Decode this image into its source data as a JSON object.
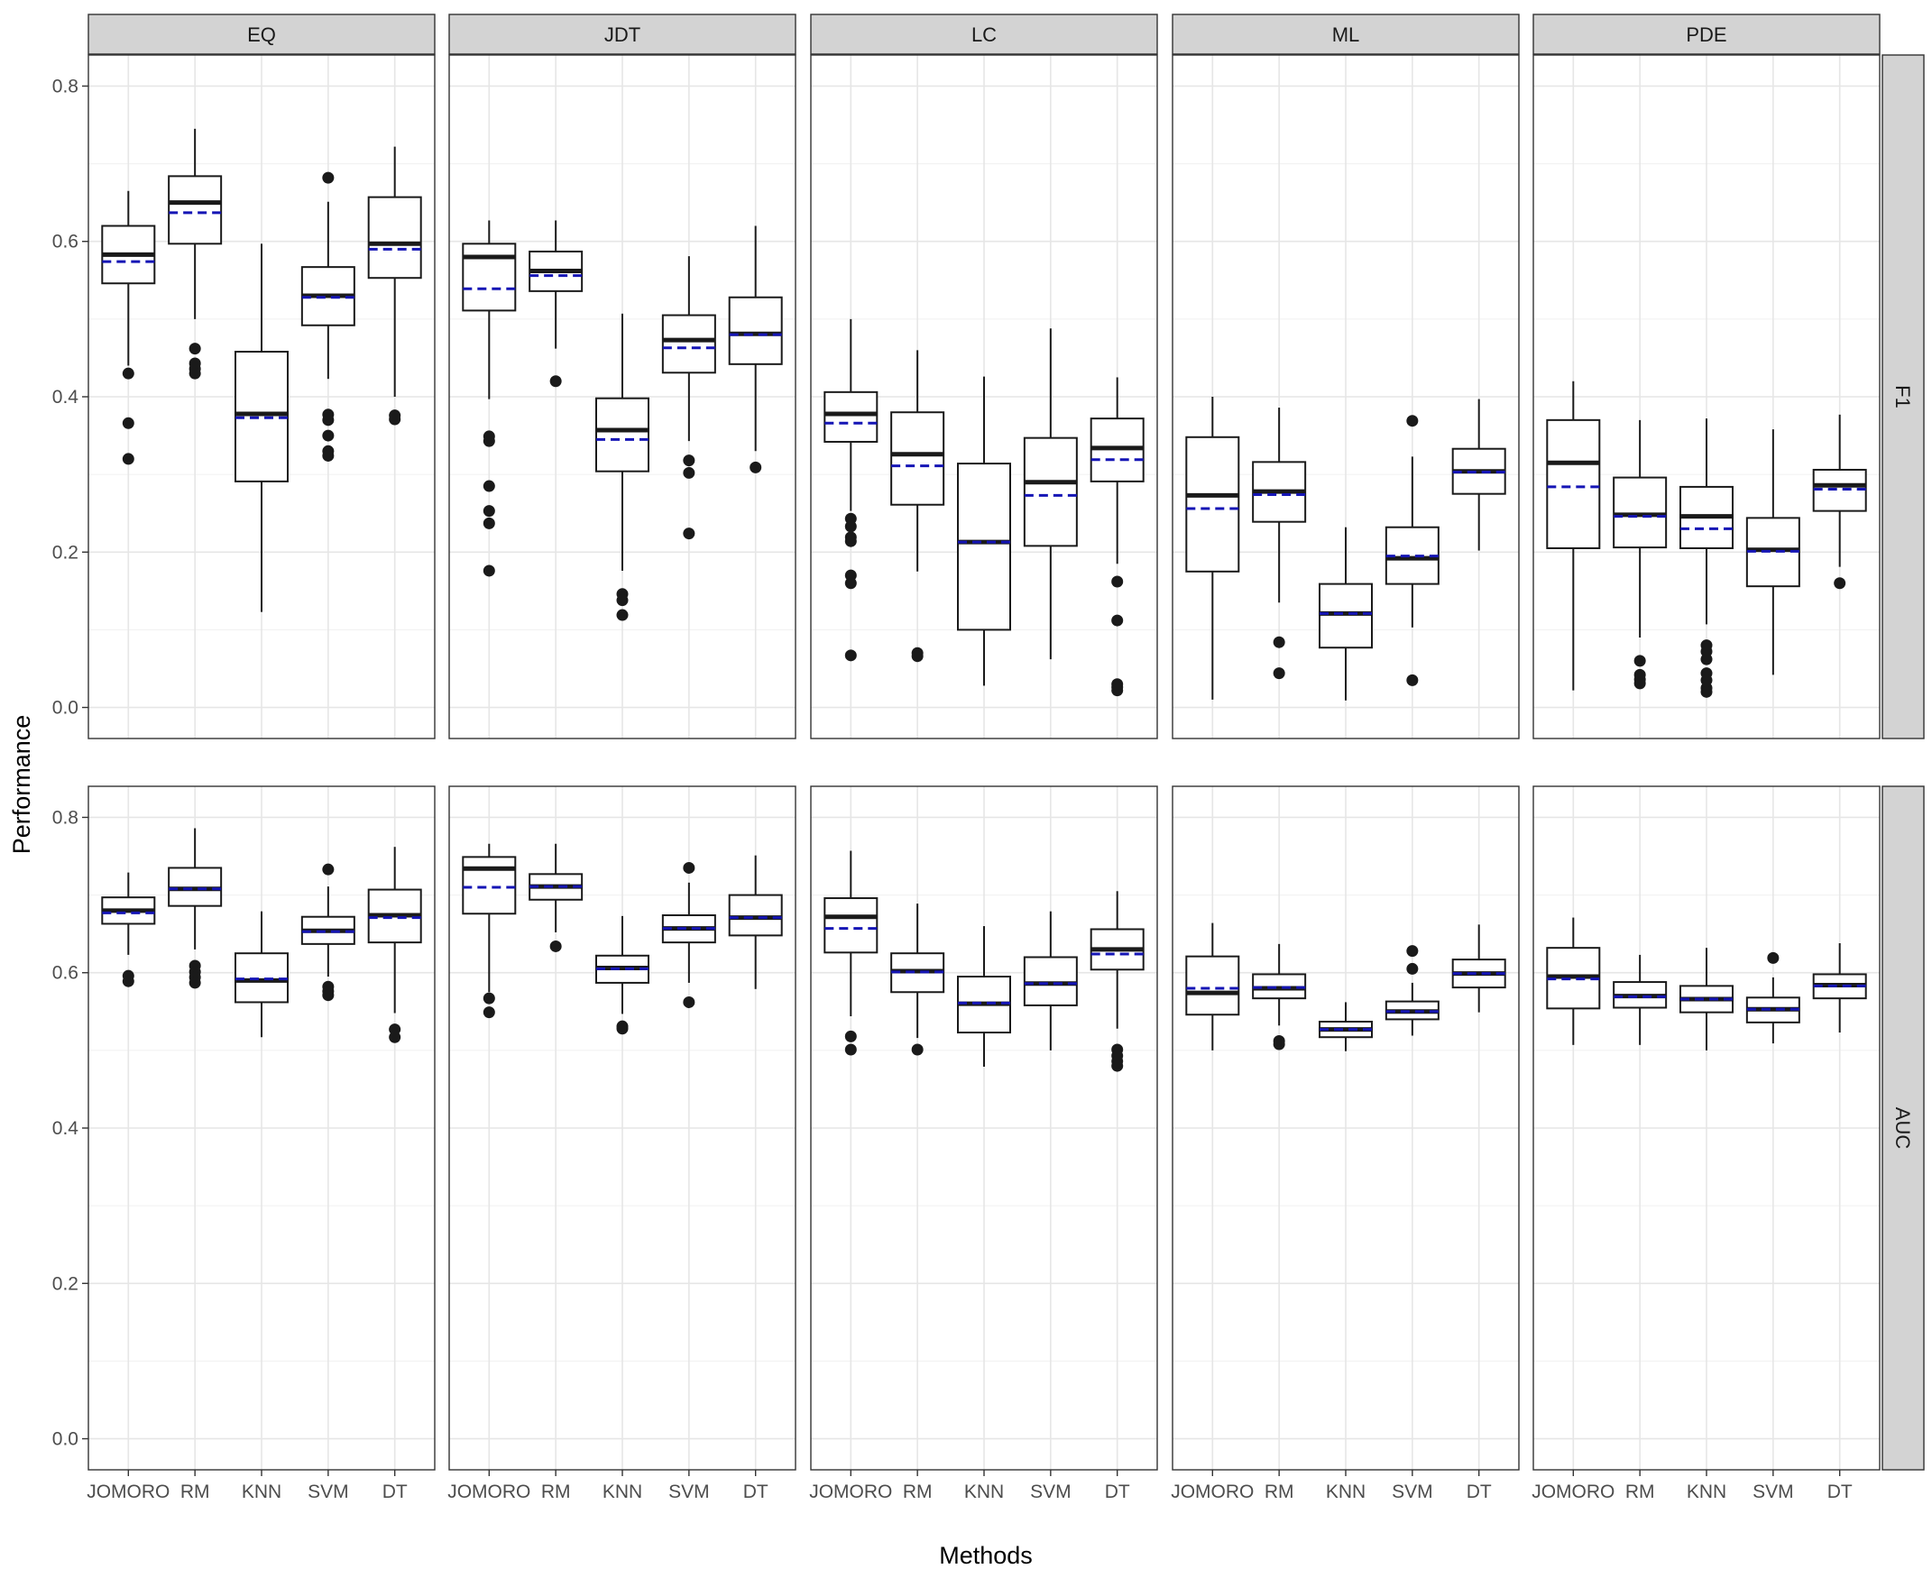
{
  "chart_data": {
    "type": "boxplot",
    "xlabel": "Methods",
    "ylabel": "Performance",
    "ylim": [
      0,
      0.8
    ],
    "yticks": [
      0.0,
      0.2,
      0.4,
      0.6,
      0.8
    ],
    "ytick_labels": [
      "0.0",
      "0.2",
      "0.4",
      "0.6",
      "0.8"
    ],
    "methods": [
      "JOMORO",
      "RM",
      "KNN",
      "SVM",
      "DT"
    ],
    "columns": [
      "EQ",
      "JDT",
      "LC",
      "ML",
      "PDE"
    ],
    "rows": [
      "F1",
      "AUC"
    ],
    "legend_note": "solid line = median, dashed line = mean",
    "colors": {
      "mean_line": "#1515b5",
      "strip": "#d3d3d3",
      "grid": "#e6e6e6"
    },
    "panels": [
      {
        "row": "F1",
        "column": "EQ",
        "boxes": [
          {
            "method": "JOMORO",
            "lower_whisker": 0.44,
            "q1": 0.546,
            "median": 0.583,
            "q3": 0.62,
            "upper_whisker": 0.665,
            "mean": 0.574,
            "outliers": [
              0.43,
              0.366,
              0.32
            ]
          },
          {
            "method": "RM",
            "lower_whisker": 0.5,
            "q1": 0.597,
            "median": 0.65,
            "q3": 0.684,
            "upper_whisker": 0.745,
            "mean": 0.637,
            "outliers": [
              0.462,
              0.443,
              0.436,
              0.43
            ]
          },
          {
            "method": "KNN",
            "lower_whisker": 0.123,
            "q1": 0.291,
            "median": 0.378,
            "q3": 0.458,
            "upper_whisker": 0.597,
            "mean": 0.373,
            "outliers": []
          },
          {
            "method": "SVM",
            "lower_whisker": 0.423,
            "q1": 0.492,
            "median": 0.53,
            "q3": 0.567,
            "upper_whisker": 0.651,
            "mean": 0.528,
            "outliers": [
              0.682,
              0.377,
              0.37,
              0.35,
              0.33,
              0.324
            ]
          },
          {
            "method": "DT",
            "lower_whisker": 0.4,
            "q1": 0.553,
            "median": 0.597,
            "q3": 0.657,
            "upper_whisker": 0.722,
            "mean": 0.59,
            "outliers": [
              0.376,
              0.371
            ]
          }
        ]
      },
      {
        "row": "F1",
        "column": "JDT",
        "boxes": [
          {
            "method": "JOMORO",
            "lower_whisker": 0.397,
            "q1": 0.511,
            "median": 0.58,
            "q3": 0.597,
            "upper_whisker": 0.627,
            "mean": 0.539,
            "outliers": [
              0.349,
              0.343,
              0.285,
              0.253,
              0.237,
              0.176
            ]
          },
          {
            "method": "RM",
            "lower_whisker": 0.462,
            "q1": 0.536,
            "median": 0.562,
            "q3": 0.587,
            "upper_whisker": 0.627,
            "mean": 0.556,
            "outliers": [
              0.42
            ]
          },
          {
            "method": "KNN",
            "lower_whisker": 0.176,
            "q1": 0.304,
            "median": 0.357,
            "q3": 0.398,
            "upper_whisker": 0.507,
            "mean": 0.345,
            "outliers": [
              0.146,
              0.138,
              0.119
            ]
          },
          {
            "method": "SVM",
            "lower_whisker": 0.343,
            "q1": 0.431,
            "median": 0.473,
            "q3": 0.505,
            "upper_whisker": 0.581,
            "mean": 0.463,
            "outliers": [
              0.318,
              0.302,
              0.224
            ]
          },
          {
            "method": "DT",
            "lower_whisker": 0.33,
            "q1": 0.442,
            "median": 0.481,
            "q3": 0.528,
            "upper_whisker": 0.62,
            "mean": 0.48,
            "outliers": [
              0.309
            ]
          }
        ]
      },
      {
        "row": "F1",
        "column": "LC",
        "boxes": [
          {
            "method": "JOMORO",
            "lower_whisker": 0.253,
            "q1": 0.342,
            "median": 0.378,
            "q3": 0.406,
            "upper_whisker": 0.5,
            "mean": 0.366,
            "outliers": [
              0.243,
              0.233,
              0.219,
              0.214,
              0.17,
              0.16,
              0.067
            ]
          },
          {
            "method": "RM",
            "lower_whisker": 0.175,
            "q1": 0.261,
            "median": 0.326,
            "q3": 0.38,
            "upper_whisker": 0.46,
            "mean": 0.311,
            "outliers": [
              0.07,
              0.066
            ]
          },
          {
            "method": "KNN",
            "lower_whisker": 0.028,
            "q1": 0.1,
            "median": 0.213,
            "q3": 0.314,
            "upper_whisker": 0.426,
            "mean": 0.213,
            "outliers": []
          },
          {
            "method": "SVM",
            "lower_whisker": 0.062,
            "q1": 0.208,
            "median": 0.29,
            "q3": 0.347,
            "upper_whisker": 0.488,
            "mean": 0.273,
            "outliers": []
          },
          {
            "method": "DT",
            "lower_whisker": 0.185,
            "q1": 0.291,
            "median": 0.334,
            "q3": 0.372,
            "upper_whisker": 0.425,
            "mean": 0.319,
            "outliers": [
              0.162,
              0.112,
              0.03,
              0.026,
              0.022
            ]
          }
        ]
      },
      {
        "row": "F1",
        "column": "ML",
        "boxes": [
          {
            "method": "JOMORO",
            "lower_whisker": 0.01,
            "q1": 0.175,
            "median": 0.273,
            "q3": 0.348,
            "upper_whisker": 0.4,
            "mean": 0.256,
            "outliers": []
          },
          {
            "method": "RM",
            "lower_whisker": 0.135,
            "q1": 0.239,
            "median": 0.278,
            "q3": 0.316,
            "upper_whisker": 0.386,
            "mean": 0.274,
            "outliers": [
              0.084,
              0.044
            ]
          },
          {
            "method": "KNN",
            "lower_whisker": 0.009,
            "q1": 0.077,
            "median": 0.121,
            "q3": 0.159,
            "upper_whisker": 0.232,
            "mean": 0.121,
            "outliers": []
          },
          {
            "method": "SVM",
            "lower_whisker": 0.103,
            "q1": 0.159,
            "median": 0.192,
            "q3": 0.232,
            "upper_whisker": 0.323,
            "mean": 0.195,
            "outliers": [
              0.369,
              0.035
            ]
          },
          {
            "method": "DT",
            "lower_whisker": 0.202,
            "q1": 0.275,
            "median": 0.304,
            "q3": 0.333,
            "upper_whisker": 0.397,
            "mean": 0.303,
            "outliers": []
          }
        ]
      },
      {
        "row": "F1",
        "column": "PDE",
        "boxes": [
          {
            "method": "JOMORO",
            "lower_whisker": 0.022,
            "q1": 0.205,
            "median": 0.315,
            "q3": 0.37,
            "upper_whisker": 0.42,
            "mean": 0.284,
            "outliers": []
          },
          {
            "method": "RM",
            "lower_whisker": 0.09,
            "q1": 0.206,
            "median": 0.248,
            "q3": 0.296,
            "upper_whisker": 0.37,
            "mean": 0.246,
            "outliers": [
              0.06,
              0.042,
              0.036,
              0.031
            ]
          },
          {
            "method": "KNN",
            "lower_whisker": 0.107,
            "q1": 0.205,
            "median": 0.246,
            "q3": 0.284,
            "upper_whisker": 0.372,
            "mean": 0.23,
            "outliers": [
              0.08,
              0.072,
              0.062,
              0.044,
              0.035,
              0.025,
              0.02
            ]
          },
          {
            "method": "SVM",
            "lower_whisker": 0.042,
            "q1": 0.156,
            "median": 0.203,
            "q3": 0.244,
            "upper_whisker": 0.358,
            "mean": 0.201,
            "outliers": []
          },
          {
            "method": "DT",
            "lower_whisker": 0.181,
            "q1": 0.253,
            "median": 0.286,
            "q3": 0.306,
            "upper_whisker": 0.377,
            "mean": 0.281,
            "outliers": [
              0.16
            ]
          }
        ]
      },
      {
        "row": "AUC",
        "column": "EQ",
        "boxes": [
          {
            "method": "JOMORO",
            "lower_whisker": 0.623,
            "q1": 0.663,
            "median": 0.68,
            "q3": 0.697,
            "upper_whisker": 0.729,
            "mean": 0.677,
            "outliers": [
              0.596,
              0.589
            ]
          },
          {
            "method": "RM",
            "lower_whisker": 0.63,
            "q1": 0.686,
            "median": 0.708,
            "q3": 0.735,
            "upper_whisker": 0.786,
            "mean": 0.708,
            "outliers": [
              0.609,
              0.601,
              0.594,
              0.587
            ]
          },
          {
            "method": "KNN",
            "lower_whisker": 0.517,
            "q1": 0.562,
            "median": 0.59,
            "q3": 0.625,
            "upper_whisker": 0.679,
            "mean": 0.592,
            "outliers": []
          },
          {
            "method": "SVM",
            "lower_whisker": 0.595,
            "q1": 0.637,
            "median": 0.654,
            "q3": 0.672,
            "upper_whisker": 0.711,
            "mean": 0.653,
            "outliers": [
              0.733,
              0.582,
              0.576,
              0.571
            ]
          },
          {
            "method": "DT",
            "lower_whisker": 0.548,
            "q1": 0.639,
            "median": 0.674,
            "q3": 0.707,
            "upper_whisker": 0.762,
            "mean": 0.671,
            "outliers": [
              0.527,
              0.517
            ]
          }
        ]
      },
      {
        "row": "AUC",
        "column": "JDT",
        "boxes": [
          {
            "method": "JOMORO",
            "lower_whisker": 0.575,
            "q1": 0.676,
            "median": 0.734,
            "q3": 0.749,
            "upper_whisker": 0.766,
            "mean": 0.71,
            "outliers": [
              0.567,
              0.549
            ]
          },
          {
            "method": "RM",
            "lower_whisker": 0.652,
            "q1": 0.694,
            "median": 0.711,
            "q3": 0.727,
            "upper_whisker": 0.766,
            "mean": 0.711,
            "outliers": [
              0.634
            ]
          },
          {
            "method": "KNN",
            "lower_whisker": 0.547,
            "q1": 0.587,
            "median": 0.606,
            "q3": 0.622,
            "upper_whisker": 0.673,
            "mean": 0.605,
            "outliers": [
              0.531,
              0.528
            ]
          },
          {
            "method": "SVM",
            "lower_whisker": 0.587,
            "q1": 0.639,
            "median": 0.657,
            "q3": 0.674,
            "upper_whisker": 0.716,
            "mean": 0.657,
            "outliers": [
              0.735,
              0.562
            ]
          },
          {
            "method": "DT",
            "lower_whisker": 0.579,
            "q1": 0.648,
            "median": 0.671,
            "q3": 0.7,
            "upper_whisker": 0.751,
            "mean": 0.671,
            "outliers": []
          }
        ]
      },
      {
        "row": "AUC",
        "column": "LC",
        "boxes": [
          {
            "method": "JOMORO",
            "lower_whisker": 0.544,
            "q1": 0.626,
            "median": 0.672,
            "q3": 0.696,
            "upper_whisker": 0.757,
            "mean": 0.657,
            "outliers": [
              0.518,
              0.501
            ]
          },
          {
            "method": "RM",
            "lower_whisker": 0.516,
            "q1": 0.575,
            "median": 0.602,
            "q3": 0.625,
            "upper_whisker": 0.689,
            "mean": 0.601,
            "outliers": [
              0.501
            ]
          },
          {
            "method": "KNN",
            "lower_whisker": 0.479,
            "q1": 0.523,
            "median": 0.56,
            "q3": 0.595,
            "upper_whisker": 0.66,
            "mean": 0.561,
            "outliers": []
          },
          {
            "method": "SVM",
            "lower_whisker": 0.5,
            "q1": 0.558,
            "median": 0.586,
            "q3": 0.62,
            "upper_whisker": 0.679,
            "mean": 0.586,
            "outliers": []
          },
          {
            "method": "DT",
            "lower_whisker": 0.528,
            "q1": 0.604,
            "median": 0.63,
            "q3": 0.656,
            "upper_whisker": 0.705,
            "mean": 0.624,
            "outliers": [
              0.501,
              0.493,
              0.486,
              0.48
            ]
          }
        ]
      },
      {
        "row": "AUC",
        "column": "ML",
        "boxes": [
          {
            "method": "JOMORO",
            "lower_whisker": 0.5,
            "q1": 0.546,
            "median": 0.574,
            "q3": 0.621,
            "upper_whisker": 0.664,
            "mean": 0.58,
            "outliers": []
          },
          {
            "method": "RM",
            "lower_whisker": 0.532,
            "q1": 0.567,
            "median": 0.58,
            "q3": 0.598,
            "upper_whisker": 0.637,
            "mean": 0.581,
            "outliers": [
              0.512,
              0.508
            ]
          },
          {
            "method": "KNN",
            "lower_whisker": 0.499,
            "q1": 0.517,
            "median": 0.527,
            "q3": 0.537,
            "upper_whisker": 0.562,
            "mean": 0.527,
            "outliers": []
          },
          {
            "method": "SVM",
            "lower_whisker": 0.519,
            "q1": 0.54,
            "median": 0.55,
            "q3": 0.563,
            "upper_whisker": 0.587,
            "mean": 0.55,
            "outliers": [
              0.628,
              0.605
            ]
          },
          {
            "method": "DT",
            "lower_whisker": 0.549,
            "q1": 0.581,
            "median": 0.599,
            "q3": 0.617,
            "upper_whisker": 0.662,
            "mean": 0.599,
            "outliers": []
          }
        ]
      },
      {
        "row": "AUC",
        "column": "PDE",
        "boxes": [
          {
            "method": "JOMORO",
            "lower_whisker": 0.507,
            "q1": 0.554,
            "median": 0.595,
            "q3": 0.632,
            "upper_whisker": 0.671,
            "mean": 0.592,
            "outliers": []
          },
          {
            "method": "RM",
            "lower_whisker": 0.507,
            "q1": 0.555,
            "median": 0.57,
            "q3": 0.588,
            "upper_whisker": 0.623,
            "mean": 0.569,
            "outliers": []
          },
          {
            "method": "KNN",
            "lower_whisker": 0.5,
            "q1": 0.549,
            "median": 0.566,
            "q3": 0.583,
            "upper_whisker": 0.632,
            "mean": 0.566,
            "outliers": []
          },
          {
            "method": "SVM",
            "lower_whisker": 0.509,
            "q1": 0.536,
            "median": 0.553,
            "q3": 0.568,
            "upper_whisker": 0.594,
            "mean": 0.553,
            "outliers": [
              0.619
            ]
          },
          {
            "method": "DT",
            "lower_whisker": 0.523,
            "q1": 0.567,
            "median": 0.584,
            "q3": 0.598,
            "upper_whisker": 0.638,
            "mean": 0.583,
            "outliers": []
          }
        ]
      }
    ]
  }
}
